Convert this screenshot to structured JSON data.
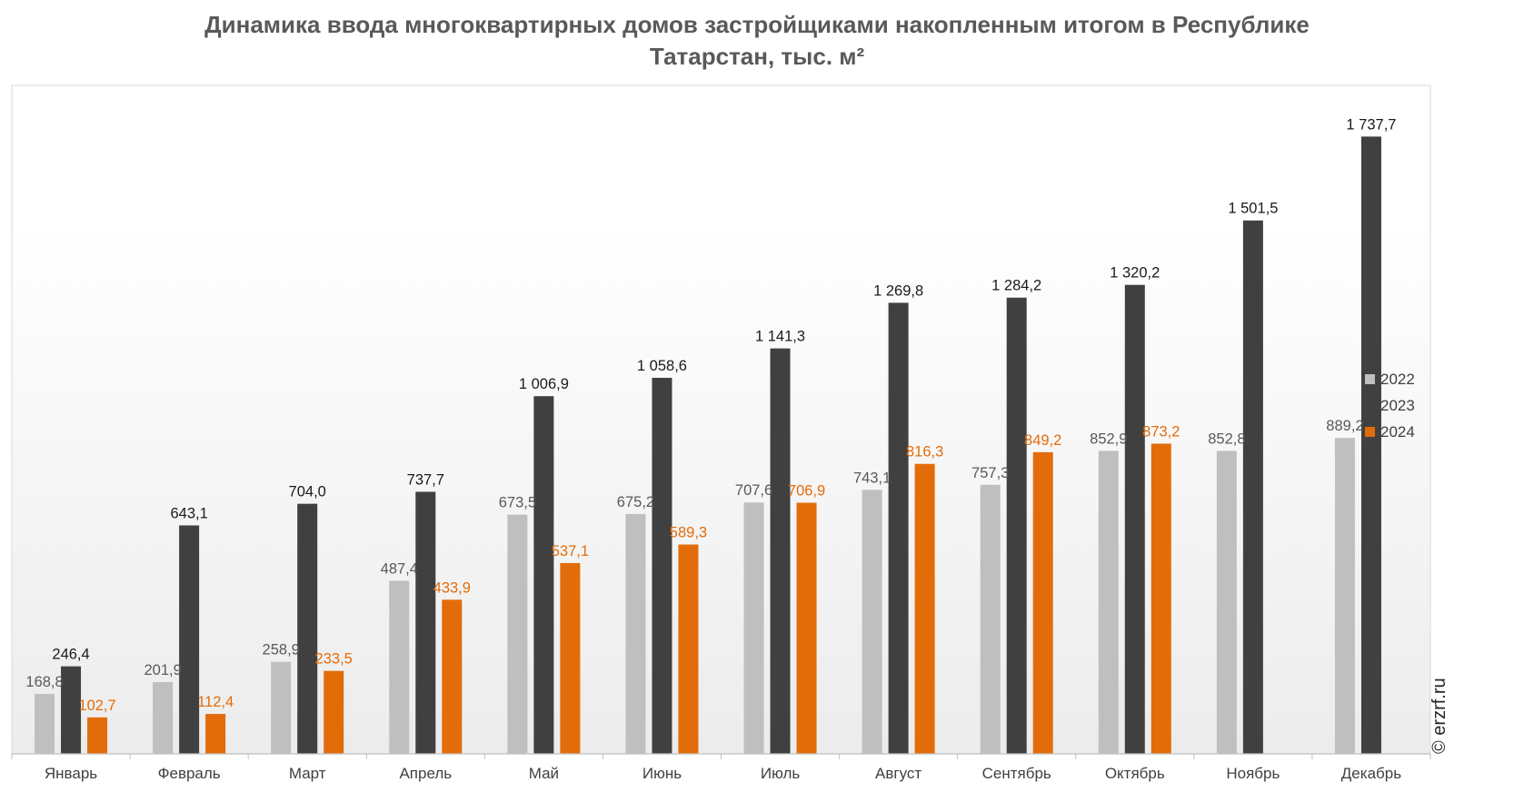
{
  "chart_data": {
    "type": "bar",
    "title_lines": [
      "Динамика ввода многоквартирных домов застройщиками накопленным итогом в Республике",
      "Татарстан, тыс. м²"
    ],
    "categories": [
      "Январь",
      "Февраль",
      "Март",
      "Апрель",
      "Май",
      "Июнь",
      "Июль",
      "Август",
      "Сентябрь",
      "Октябрь",
      "Ноябрь",
      "Декабрь"
    ],
    "series": [
      {
        "name": "2022",
        "color": "#bfbfbf",
        "label_color": "#595959",
        "values": [
          168.8,
          201.9,
          258.9,
          487.4,
          673.5,
          675.2,
          707.6,
          743.1,
          757.3,
          852.9,
          852.8,
          889.2
        ],
        "labels": [
          "168,8",
          "201,9",
          "258,9",
          "487,4",
          "673,5",
          "675,2",
          "707,6",
          "743,1",
          "757,3",
          "852,9",
          "852,8",
          "889,2"
        ]
      },
      {
        "name": "2023",
        "color": "#404040",
        "label_color": "#1a1a1a",
        "values": [
          246.4,
          643.1,
          704.0,
          737.7,
          1006.9,
          1058.6,
          1141.3,
          1269.8,
          1284.2,
          1320.2,
          1501.5,
          1737.7
        ],
        "labels": [
          "246,4",
          "643,1",
          "704,0",
          "737,7",
          "1 006,9",
          "1 058,6",
          "1 141,3",
          "1 269,8",
          "1 284,2",
          "1 320,2",
          "1 501,5",
          "1 737,7"
        ]
      },
      {
        "name": "2024",
        "color": "#e36c0a",
        "label_color": "#e36c0a",
        "values": [
          102.7,
          112.4,
          233.5,
          433.9,
          537.1,
          589.3,
          706.9,
          816.3,
          849.2,
          873.2,
          null,
          null
        ],
        "labels": [
          "102,7",
          "112,4",
          "233,5",
          "433,9",
          "537,1",
          "589,3",
          "706,9",
          "816,3",
          "849,2",
          "873,2",
          "",
          ""
        ]
      }
    ],
    "ylim": [
      0,
      1800
    ],
    "grid": false,
    "legend_position": "right",
    "watermark": "© erzrf.ru"
  }
}
